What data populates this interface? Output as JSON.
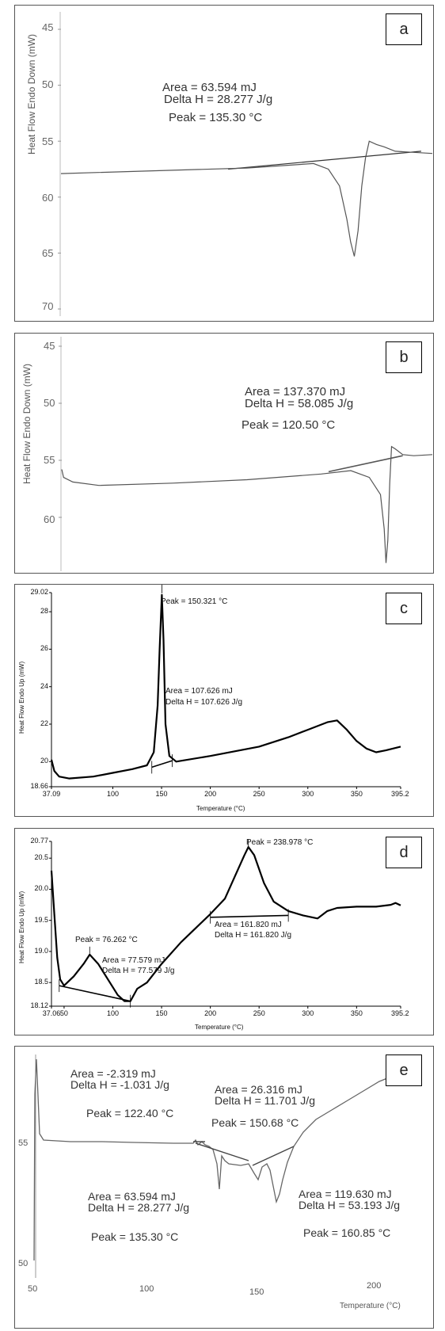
{
  "chart_data": [
    {
      "panel": "a",
      "type": "line",
      "ylabel": "Heat Flow Endo Down (mW)",
      "xlabel": "",
      "y_ticks": [
        "45",
        "50",
        "55",
        "60",
        "65",
        "70"
      ],
      "ylim": [
        45,
        70
      ],
      "y_inverted": true,
      "annotations": [
        "Area = 63.594 mJ",
        "Delta H = 28.277 J/g",
        "Peak = 135.30 °C"
      ],
      "series": [
        {
          "values_x": [
            0.0,
            0.5,
            0.68,
            0.72,
            0.75,
            0.77,
            0.78,
            0.79,
            0.8,
            0.81,
            0.82,
            0.83,
            0.85,
            0.87,
            0.9,
            0.95,
            1.0
          ],
          "values_y": [
            57.9,
            57.4,
            57.0,
            57.5,
            59.0,
            62.0,
            64.0,
            65.3,
            63.0,
            59.0,
            56.5,
            55.0,
            55.3,
            55.5,
            55.9,
            56.0,
            56.1
          ]
        }
      ],
      "baseline": {
        "x": [
          0.45,
          0.97
        ],
        "y": [
          57.5,
          55.9
        ]
      }
    },
    {
      "panel": "b",
      "type": "line",
      "ylabel": "Heat Flow Endo Down (mW)",
      "xlabel": "",
      "y_ticks": [
        "45",
        "50",
        "55",
        "60"
      ],
      "ylim": [
        45,
        65
      ],
      "y_inverted": true,
      "annotations": [
        "Area = 137.370 mJ",
        "Delta H = 58.085 J/g",
        "Peak = 120.50 °C"
      ],
      "series": [
        {
          "values_x": [
            0.0,
            0.005,
            0.03,
            0.1,
            0.3,
            0.5,
            0.7,
            0.78,
            0.83,
            0.86,
            0.87,
            0.875,
            0.88,
            0.885,
            0.89,
            0.9,
            0.92,
            0.95,
            1.0
          ],
          "values_y": [
            55.8,
            56.5,
            56.9,
            57.2,
            57.0,
            56.7,
            56.2,
            55.9,
            56.5,
            58.0,
            61.0,
            64.0,
            62.0,
            57.0,
            53.8,
            54.0,
            54.5,
            54.6,
            54.5
          ]
        }
      ],
      "baseline": {
        "x": [
          0.72,
          0.92
        ],
        "y": [
          56.0,
          54.6
        ]
      }
    },
    {
      "panel": "c",
      "type": "line",
      "ylabel": "Heat Flow Endo Up (mW)",
      "xlabel": "Temperature (°C)",
      "xlim": [
        37.09,
        395.2
      ],
      "ylim": [
        18.66,
        29.02
      ],
      "x_ticks": [
        "37.09",
        "100",
        "150",
        "200",
        "250",
        "300",
        "350",
        "395.2"
      ],
      "y_ticks": [
        "18.66",
        "20",
        "22",
        "24",
        "26",
        "28",
        "29.02"
      ],
      "annotations": [
        "Peak = 150.321 °C",
        "Area = 107.626 mJ",
        "Delta H = 107.626 J/g"
      ],
      "series": [
        {
          "x": [
            37.09,
            40,
            45,
            55,
            80,
            100,
            120,
            135,
            142,
            146,
            148,
            150.3,
            152,
            154,
            158,
            165,
            200,
            250,
            280,
            300,
            320,
            330,
            340,
            350,
            360,
            370,
            380,
            395.2
          ],
          "y": [
            20.1,
            19.5,
            19.2,
            19.1,
            19.2,
            19.4,
            19.6,
            19.8,
            20.5,
            23.0,
            26.0,
            28.9,
            26.5,
            22.0,
            20.3,
            20.0,
            20.3,
            20.8,
            21.3,
            21.7,
            22.1,
            22.2,
            21.7,
            21.1,
            20.7,
            20.5,
            20.6,
            20.8
          ]
        }
      ],
      "baseline": {
        "x": [
          140,
          161
        ],
        "y": [
          19.7,
          20.05
        ]
      }
    },
    {
      "panel": "d",
      "type": "line",
      "ylabel": "Heat Flow Endo Up (mW)",
      "xlabel": "Temperature (°C)",
      "xlim": [
        37.06,
        395.2
      ],
      "ylim": [
        18.12,
        20.77
      ],
      "x_ticks": [
        "37.06",
        "50",
        "100",
        "150",
        "200",
        "250",
        "300",
        "350",
        "395.2"
      ],
      "y_ticks": [
        "18.12",
        "18.5",
        "19.0",
        "19.5",
        "20.0",
        "20.5",
        "20.77"
      ],
      "annotations": [
        "Peak = 76.262 °C",
        "Area = 77.579 mJ",
        "Delta H = 77.579 J/g",
        "Peak = 238.978 °C",
        "Area = 161.820 mJ",
        "Delta H = 161.820 J/g"
      ],
      "series": [
        {
          "x": [
            37.06,
            40,
            43,
            46,
            50,
            60,
            70,
            76.3,
            85,
            95,
            105,
            112,
            118,
            125,
            135,
            150,
            170,
            190,
            200,
            215,
            225,
            235,
            239,
            245,
            255,
            265,
            280,
            295,
            310,
            320,
            330,
            350,
            370,
            385,
            390,
            395.2
          ],
          "y": [
            20.3,
            19.6,
            18.9,
            18.55,
            18.45,
            18.6,
            18.8,
            18.95,
            18.8,
            18.55,
            18.3,
            18.2,
            18.2,
            18.4,
            18.5,
            18.8,
            19.15,
            19.45,
            19.6,
            19.85,
            20.2,
            20.55,
            20.68,
            20.55,
            20.1,
            19.8,
            19.65,
            19.58,
            19.53,
            19.65,
            19.7,
            19.72,
            19.72,
            19.75,
            19.78,
            19.74
          ]
        }
      ],
      "baselines": [
        {
          "x": [
            45,
            118
          ],
          "y": [
            18.45,
            18.2
          ]
        },
        {
          "x": [
            200,
            280
          ],
          "y": [
            19.55,
            19.58
          ]
        }
      ]
    },
    {
      "panel": "e",
      "type": "line",
      "ylabel": "",
      "xlabel": "Temperature (°C)",
      "xlim": [
        50,
        200
      ],
      "x_ticks": [
        "50",
        "100",
        "150",
        "200"
      ],
      "y_ticks": [
        "55",
        "50"
      ],
      "annotations": [
        "Area = -2.319 mJ",
        "Delta H = -1.031 J/g",
        "Peak = 122.40 °C",
        "Area = 26.316 mJ",
        "Delta H = 11.701 J/g",
        "Peak = 150.68 °C",
        "Area = 63.594 mJ",
        "Delta H = 28.277 J/g",
        "Peak = 135.30 °C",
        "Area = 119.630 mJ",
        "Delta H = 53.193 J/g",
        "Peak = 160.85 °C"
      ]
    }
  ]
}
